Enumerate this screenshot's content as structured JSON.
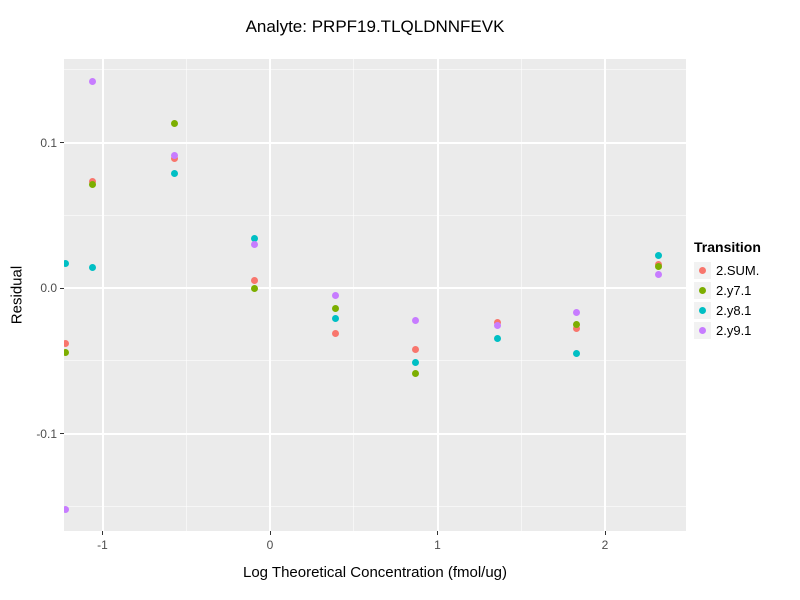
{
  "chart_data": {
    "type": "scatter",
    "title": "Analyte: PRPF19.TLQLDNNFEVK",
    "xlabel": "Log Theoretical Concentration (fmol/ug)",
    "ylabel": "Residual",
    "xlim": [
      -1.23,
      2.48
    ],
    "ylim": [
      -0.167,
      0.157
    ],
    "grid": true,
    "x_ticks": [
      {
        "v": -1,
        "label": "-1"
      },
      {
        "v": 0,
        "label": "0"
      },
      {
        "v": 1,
        "label": "1"
      },
      {
        "v": 2,
        "label": "2"
      }
    ],
    "x_minor_ticks": [
      -0.5,
      0.5,
      1.5
    ],
    "y_ticks": [
      {
        "v": 0.1,
        "label": "0.1"
      },
      {
        "v": 0.0,
        "label": "0.0"
      },
      {
        "v": -0.1,
        "label": "-0.1"
      }
    ],
    "y_minor_ticks": [
      0.15,
      0.05,
      -0.05,
      -0.15
    ],
    "legend_title": "Transition",
    "legend_position": "right",
    "series": [
      {
        "name": "2.SUM.",
        "color": "#F8766D",
        "points": [
          [
            -1.22,
            -0.038
          ],
          [
            -1.06,
            0.073
          ],
          [
            -0.57,
            0.089
          ],
          [
            -0.09,
            0.005
          ],
          [
            0.39,
            -0.031
          ],
          [
            0.87,
            -0.042
          ],
          [
            1.36,
            -0.024
          ],
          [
            1.83,
            -0.028
          ],
          [
            2.32,
            0.016
          ]
        ]
      },
      {
        "name": "2.y7.1",
        "color": "#7CAE00",
        "points": [
          [
            -1.22,
            -0.044
          ],
          [
            -1.06,
            0.071
          ],
          [
            -0.57,
            0.113
          ],
          [
            -0.09,
            0.0
          ],
          [
            0.39,
            -0.014
          ],
          [
            0.87,
            -0.059
          ],
          [
            1.83,
            -0.025
          ],
          [
            2.32,
            0.015
          ]
        ]
      },
      {
        "name": "2.y8.1",
        "color": "#00BFC4",
        "points": [
          [
            -1.22,
            0.017
          ],
          [
            -1.06,
            0.014
          ],
          [
            -0.57,
            0.079
          ],
          [
            -0.09,
            0.034
          ],
          [
            0.39,
            -0.021
          ],
          [
            0.87,
            -0.051
          ],
          [
            1.36,
            -0.035
          ],
          [
            1.83,
            -0.045
          ],
          [
            2.32,
            0.022
          ]
        ]
      },
      {
        "name": "2.y9.1",
        "color": "#C77CFF",
        "points": [
          [
            -1.22,
            -0.152
          ],
          [
            -1.06,
            0.142
          ],
          [
            -0.57,
            0.091
          ],
          [
            -0.09,
            0.03
          ],
          [
            0.39,
            -0.005
          ],
          [
            0.87,
            -0.022
          ],
          [
            1.36,
            -0.026
          ],
          [
            1.83,
            -0.017
          ],
          [
            2.32,
            0.009
          ]
        ]
      }
    ]
  },
  "style": {
    "page_bg": "#FFFFFF",
    "panel_bg": "#EBEBEB",
    "grid_major_color": "#FFFFFF",
    "grid_minor_color": "rgba(255,255,255,0.55)",
    "tick_mark_color": "#333333",
    "tick_label_color": "#4D4D4D",
    "axis_title_color": "#000000",
    "legend_key_bg": "#F2F2F2"
  }
}
